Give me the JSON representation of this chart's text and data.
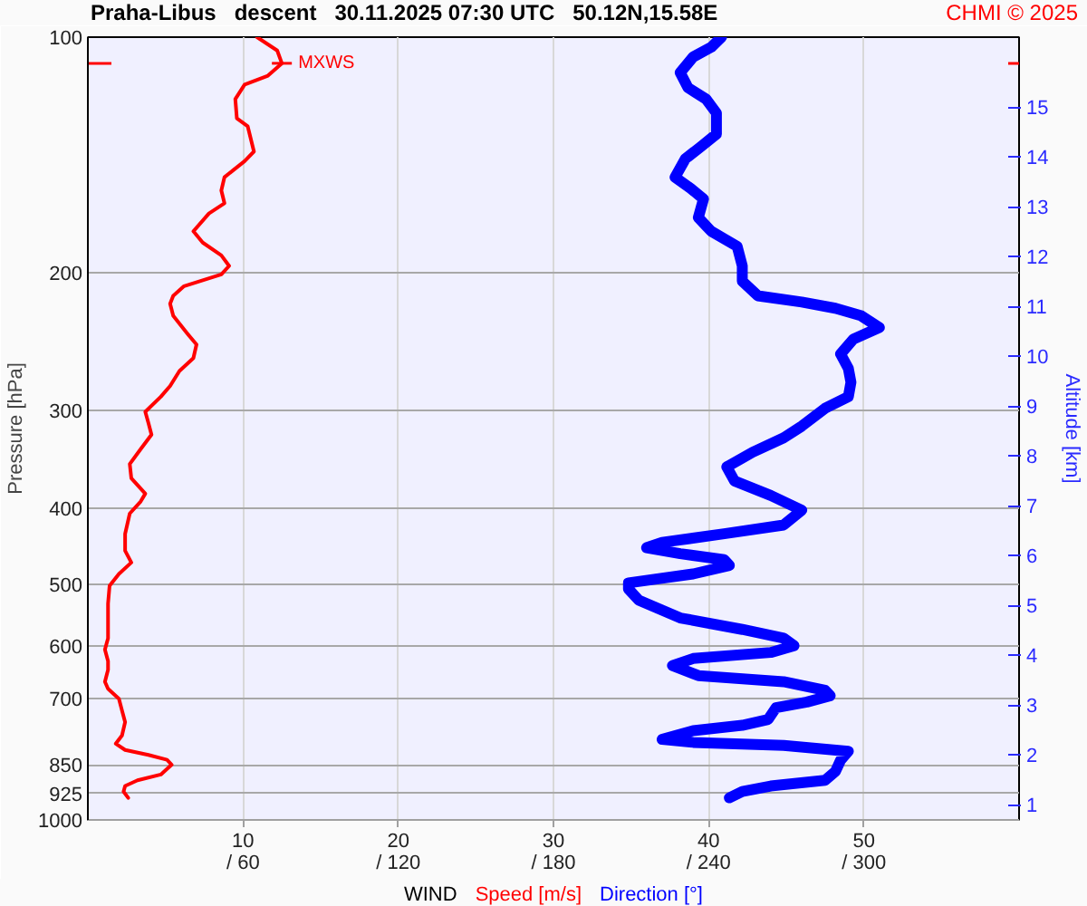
{
  "chart_data": {
    "type": "line",
    "title": "Praha-Libus   descent   30.11.2025 07:30 UTC   50.12N,15.58E",
    "xlabel": "WIND",
    "ylabel": "Pressure [hPa]",
    "y2label": "Altitude [km]",
    "series": [
      {
        "name": "Speed [m/s]",
        "color": "#ff0000",
        "x": [
          10.9,
          12.2,
          12.5,
          11.6,
          10.1,
          9.5,
          9.6,
          10.3,
          10.7,
          10.1,
          8.8,
          8.6,
          8.8,
          7.8,
          6.8,
          7.4,
          8.6,
          9.1,
          8.6,
          6.2,
          5.5,
          5.3,
          5.5,
          6.4,
          7.0,
          6.8,
          5.9,
          5.3,
          4.7,
          3.7,
          3.9,
          4.1,
          3.4,
          2.7,
          2.8,
          3.7,
          3.4,
          2.7,
          2.4,
          2.4,
          2.8,
          2.0,
          1.4,
          1.3,
          1.3,
          1.1,
          1.3,
          1.3,
          1.1,
          1.3,
          2.0,
          2.2,
          2.4,
          2.2,
          1.8,
          2.4,
          3.9,
          5.1,
          5.4,
          4.7,
          3.2,
          2.4,
          2.3,
          2.6
        ],
        "values": [
          100,
          104,
          108,
          112,
          115,
          120,
          127,
          130,
          140,
          144,
          151,
          157,
          163,
          168,
          177,
          183,
          190,
          196,
          201,
          208,
          214,
          219,
          227,
          239,
          247,
          257,
          267,
          279,
          288,
          301,
          311,
          322,
          336,
          351,
          366,
          383,
          392,
          406,
          431,
          453,
          469,
          485,
          502,
          529,
          586,
          606,
          627,
          643,
          666,
          680,
          700,
          725,
          750,
          780,
          799,
          814,
          826,
          838,
          850,
          875,
          890,
          905,
          920,
          937
        ]
      },
      {
        "name": "Direction [°]",
        "color": "#0000ff",
        "axis": "x2",
        "x": [
          245,
          241,
          234,
          229,
          232,
          239,
          243,
          243,
          237,
          231,
          227,
          233,
          238,
          236,
          241,
          251,
          253,
          253,
          259,
          276,
          289,
          299,
          306,
          296,
          291,
          294,
          295,
          294,
          285,
          276,
          269,
          257,
          247,
          250,
          264,
          276,
          269,
          246,
          222,
          216,
          229,
          246,
          248,
          234,
          209,
          209,
          213,
          229,
          253,
          269,
          273,
          264,
          234,
          226,
          236,
          269,
          285,
          287,
          278,
          266,
          263,
          253,
          234,
          222,
          234,
          269,
          294,
          291,
          289,
          285,
          264,
          253,
          248
        ],
        "values": [
          100,
          103,
          106,
          111,
          116,
          120,
          125,
          133,
          138,
          143,
          151,
          156,
          161,
          170,
          177,
          185,
          196,
          205,
          214,
          218,
          222,
          227,
          235,
          243,
          254,
          265,
          276,
          288,
          298,
          314,
          325,
          339,
          354,
          369,
          385,
          402,
          420,
          431,
          442,
          449,
          457,
          465,
          473,
          485,
          498,
          507,
          524,
          552,
          571,
          586,
          599,
          611,
          622,
          635,
          654,
          666,
          683,
          694,
          707,
          719,
          744,
          757,
          769,
          789,
          796,
          803,
          817,
          839,
          867,
          890,
          905,
          920,
          937
        ]
      }
    ],
    "xlim": [
      0,
      60
    ],
    "xticks": [
      10,
      20,
      30,
      40,
      50
    ],
    "x2lim": [
      0,
      360
    ],
    "x2ticks": [
      {
        "value": 60,
        "label": "/ 60"
      },
      {
        "value": 120,
        "label": "/ 120"
      },
      {
        "value": 180,
        "label": "/ 180"
      },
      {
        "value": 240,
        "label": "/ 240"
      },
      {
        "value": 300,
        "label": "/ 300"
      }
    ],
    "ylim": [
      1000,
      100
    ],
    "yticks": [
      100,
      200,
      300,
      400,
      500,
      600,
      700,
      850,
      925,
      1000
    ],
    "log": "y",
    "y2lim": [
      0.7,
      16.4
    ],
    "y2ticks": [
      1,
      2,
      3,
      4,
      5,
      6,
      7,
      8,
      9,
      10,
      11,
      12,
      13,
      14,
      15
    ],
    "grid": true,
    "legend": "bottom",
    "ref_lines": [
      {
        "axis": "y",
        "value": 108,
        "color": "#ff0000"
      }
    ],
    "annotations": [
      "CHMI © 2025",
      {
        "text": "MXWS",
        "x": 12.5,
        "y": 108
      }
    ]
  }
}
